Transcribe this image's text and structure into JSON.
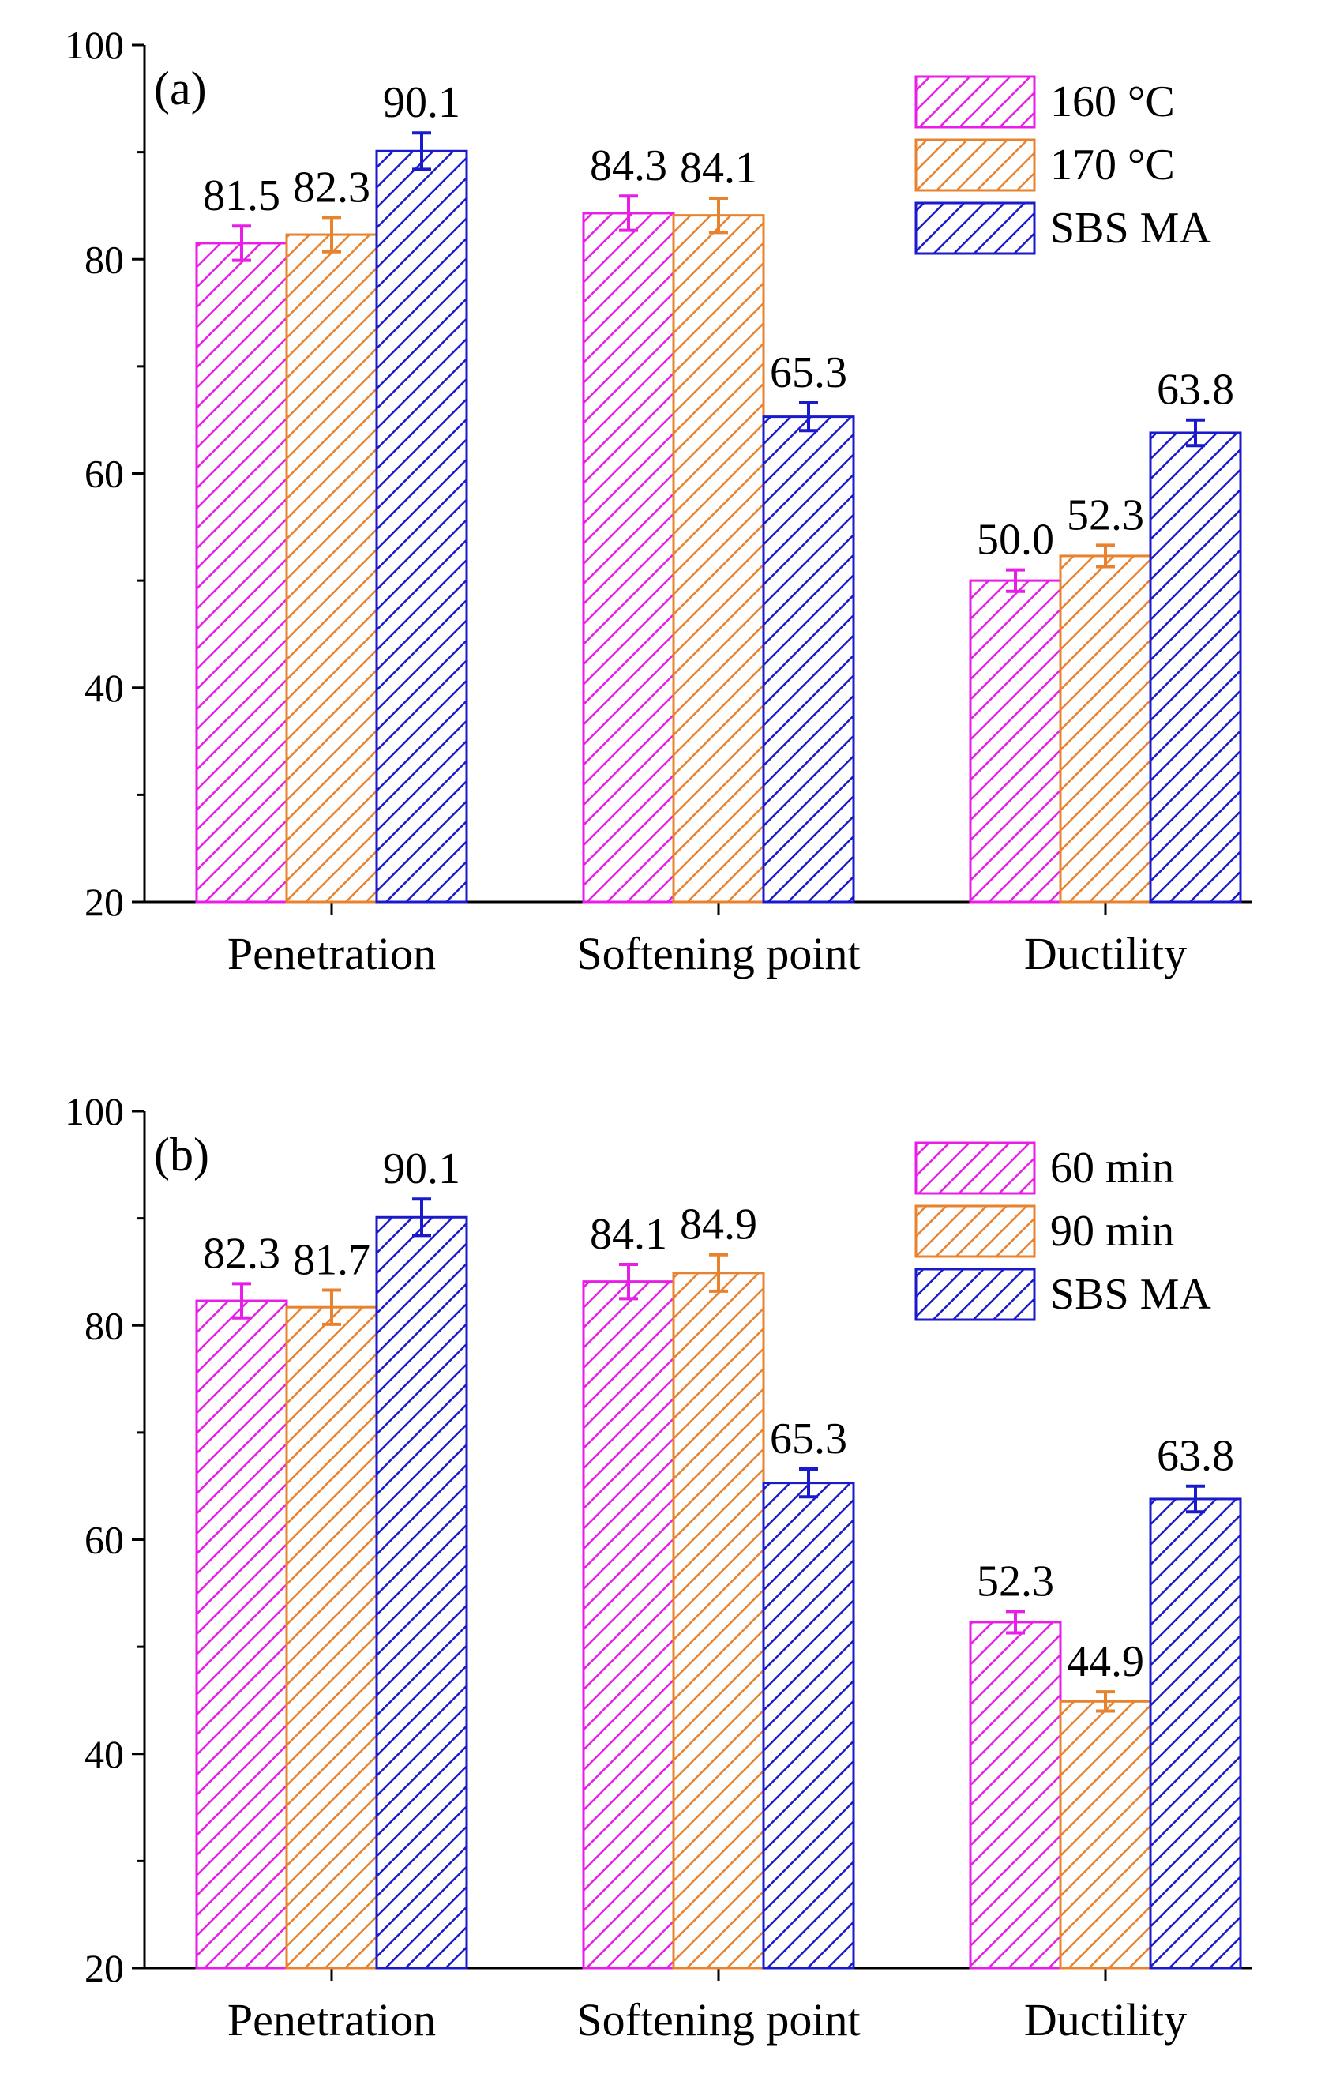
{
  "chart_data": [
    {
      "type": "bar",
      "panel_label": "(a)",
      "categories": [
        "Penetration",
        "Softening point",
        "Ductility"
      ],
      "ylim": [
        20,
        100
      ],
      "yticks": [
        20,
        40,
        60,
        80,
        100
      ],
      "xlabel": "",
      "ylabel": "",
      "legend_position": "top-right",
      "series": [
        {
          "name": "160 °C",
          "color": "#e81ee8",
          "values": [
            81.5,
            84.3,
            50.0
          ],
          "labels": [
            "81.5",
            "84.3",
            "50.0"
          ],
          "errors": [
            1.6,
            1.6,
            1.0
          ]
        },
        {
          "name": "170 °C",
          "color": "#e8822e",
          "values": [
            82.3,
            84.1,
            52.3
          ],
          "labels": [
            "82.3",
            "84.1",
            "52.3"
          ],
          "errors": [
            1.6,
            1.6,
            1.0
          ]
        },
        {
          "name": "SBS MA",
          "color": "#1a1acc",
          "values": [
            90.1,
            65.3,
            63.8
          ],
          "labels": [
            "90.1",
            "65.3",
            "63.8"
          ],
          "errors": [
            1.7,
            1.3,
            1.2
          ]
        }
      ]
    },
    {
      "type": "bar",
      "panel_label": "(b)",
      "categories": [
        "Penetration",
        "Softening point",
        "Ductility"
      ],
      "ylim": [
        20,
        100
      ],
      "yticks": [
        20,
        40,
        60,
        80,
        100
      ],
      "xlabel": "",
      "ylabel": "",
      "legend_position": "top-right",
      "series": [
        {
          "name": "60 min",
          "color": "#e81ee8",
          "values": [
            82.3,
            84.1,
            52.3
          ],
          "labels": [
            "82.3",
            "84.1",
            "52.3"
          ],
          "errors": [
            1.6,
            1.6,
            1.0
          ]
        },
        {
          "name": "90 min",
          "color": "#e8822e",
          "values": [
            81.7,
            84.9,
            44.9
          ],
          "labels": [
            "81.7",
            "84.9",
            "44.9"
          ],
          "errors": [
            1.6,
            1.7,
            0.9
          ]
        },
        {
          "name": "SBS MA",
          "color": "#1a1acc",
          "values": [
            90.1,
            65.3,
            63.8
          ],
          "labels": [
            "90.1",
            "65.3",
            "63.8"
          ],
          "errors": [
            1.7,
            1.3,
            1.2
          ]
        }
      ]
    }
  ]
}
